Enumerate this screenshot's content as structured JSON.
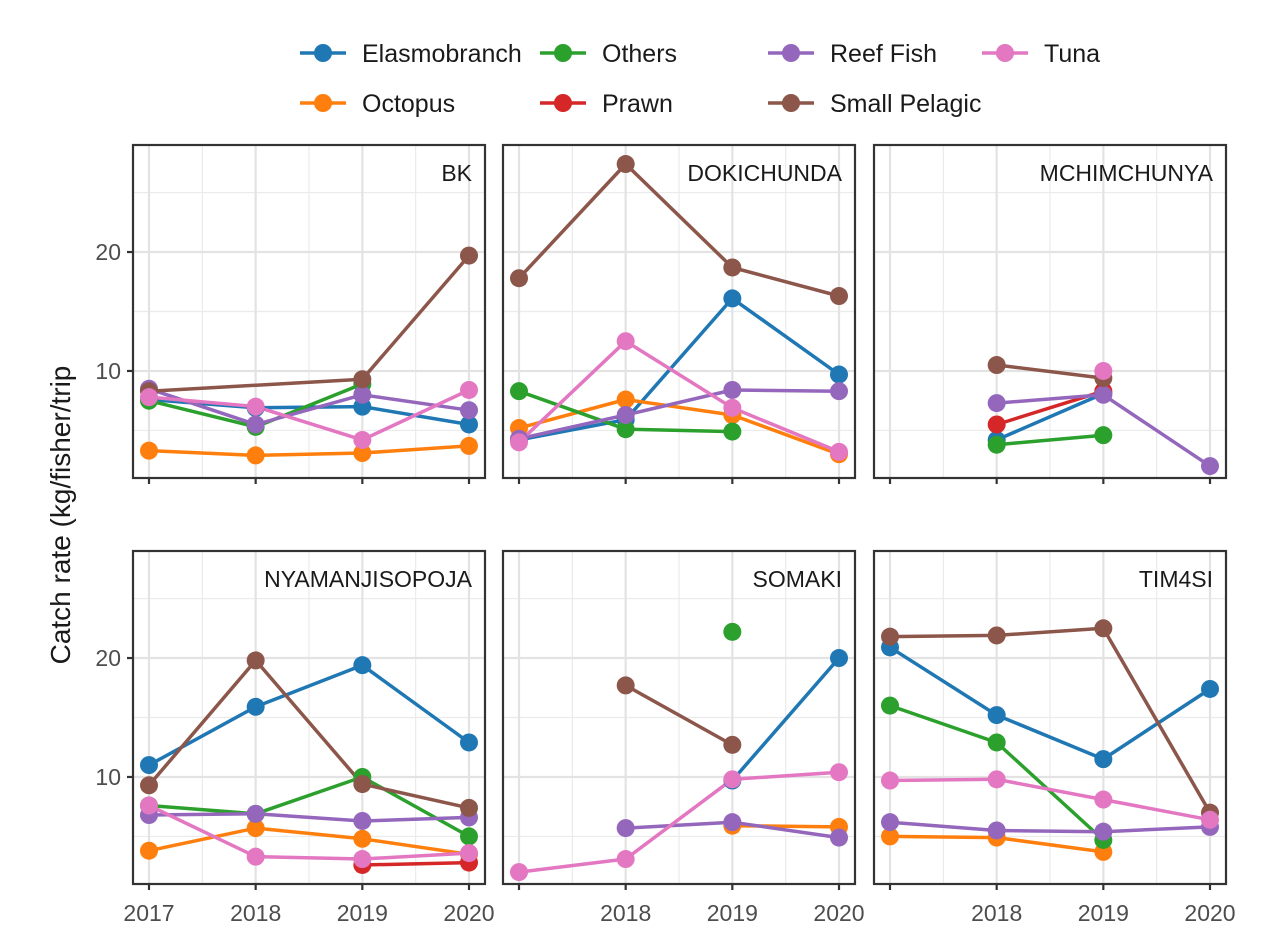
{
  "chart_data": {
    "type": "line",
    "ylabel": "Catch rate (kg/fisher/trip",
    "xlabel": "",
    "x_ticks": [
      2017,
      2018,
      2019,
      2020
    ],
    "y_ticks": [
      10,
      20
    ],
    "ylim": [
      1,
      29
    ],
    "xlim": [
      2016.85,
      2020.15
    ],
    "grid": true,
    "legend_position": "top",
    "series_names": [
      "Elasmobranch",
      "Octopus",
      "Others",
      "Prawn",
      "Reef Fish",
      "Small Pelagic",
      "Tuna"
    ],
    "legend_order": [
      "Elasmobranch",
      "Others",
      "Reef Fish",
      "Tuna",
      "Octopus",
      "Prawn",
      "Small Pelagic"
    ],
    "colors": {
      "Elasmobranch": "#1f77b4",
      "Octopus": "#ff7f0e",
      "Others": "#2ca02c",
      "Prawn": "#d62728",
      "Reef Fish": "#9467bd",
      "Small Pelagic": "#8c564b",
      "Tuna": "#e377c2"
    },
    "panels": [
      {
        "name": "BK",
        "x_tick_labels": [],
        "series": [
          {
            "name": "Elasmobranch",
            "x": [
              2017,
              2018,
              2019,
              2020
            ],
            "y": [
              7.6,
              6.9,
              7.0,
              5.5
            ]
          },
          {
            "name": "Octopus",
            "x": [
              2017,
              2018,
              2019,
              2020
            ],
            "y": [
              3.3,
              2.9,
              3.1,
              3.7
            ]
          },
          {
            "name": "Others",
            "x": [
              2017,
              2018,
              2019
            ],
            "y": [
              7.5,
              5.3,
              8.9
            ]
          },
          {
            "name": "Reef Fish",
            "x": [
              2017,
              2018,
              2019,
              2020
            ],
            "y": [
              8.5,
              5.5,
              8.0,
              6.7
            ]
          },
          {
            "name": "Small Pelagic",
            "x": [
              2017,
              2019,
              2020
            ],
            "y": [
              8.3,
              9.3,
              19.7
            ]
          },
          {
            "name": "Tuna",
            "x": [
              2017,
              2018,
              2019,
              2020
            ],
            "y": [
              7.8,
              7.0,
              4.2,
              8.4
            ]
          }
        ]
      },
      {
        "name": "DOKICHUNDA",
        "x_tick_labels": [],
        "series": [
          {
            "name": "Elasmobranch",
            "x": [
              2017,
              2018,
              2019,
              2020
            ],
            "y": [
              4.2,
              5.9,
              16.1,
              9.7
            ]
          },
          {
            "name": "Octopus",
            "x": [
              2017,
              2018,
              2019,
              2020
            ],
            "y": [
              5.2,
              7.6,
              6.3,
              3.0
            ]
          },
          {
            "name": "Others",
            "x": [
              2017,
              2018,
              2019
            ],
            "y": [
              8.3,
              5.1,
              4.9
            ]
          },
          {
            "name": "Reef Fish",
            "x": [
              2017,
              2018,
              2019,
              2020
            ],
            "y": [
              4.3,
              6.3,
              8.4,
              8.3
            ]
          },
          {
            "name": "Small Pelagic",
            "x": [
              2017,
              2018,
              2019,
              2020
            ],
            "y": [
              17.8,
              27.4,
              18.7,
              16.3
            ]
          },
          {
            "name": "Tuna",
            "x": [
              2017,
              2018,
              2019,
              2020
            ],
            "y": [
              4.0,
              12.5,
              6.9,
              3.2
            ]
          }
        ]
      },
      {
        "name": "MCHIMCHUNYA",
        "x_tick_labels": [],
        "series": [
          {
            "name": "Elasmobranch",
            "x": [
              2018,
              2019
            ],
            "y": [
              4.2,
              8.1
            ]
          },
          {
            "name": "Others",
            "x": [
              2018,
              2019
            ],
            "y": [
              3.8,
              4.6
            ]
          },
          {
            "name": "Prawn",
            "x": [
              2018,
              2019
            ],
            "y": [
              5.5,
              8.3
            ]
          },
          {
            "name": "Reef Fish",
            "x": [
              2018,
              2019,
              2020
            ],
            "y": [
              7.3,
              8.0,
              2.0
            ]
          },
          {
            "name": "Small Pelagic",
            "x": [
              2018,
              2019
            ],
            "y": [
              10.5,
              9.4
            ]
          },
          {
            "name": "Tuna",
            "x": [
              2019
            ],
            "y": [
              10.0
            ]
          }
        ]
      },
      {
        "name": "NYAMANJISOPOJA",
        "x_tick_labels": [
          "2017",
          "2018",
          "2019",
          "2020"
        ],
        "series": [
          {
            "name": "Elasmobranch",
            "x": [
              2017,
              2018,
              2019,
              2020
            ],
            "y": [
              11.0,
              15.9,
              19.4,
              12.9
            ]
          },
          {
            "name": "Octopus",
            "x": [
              2017,
              2018,
              2019,
              2020
            ],
            "y": [
              3.8,
              5.7,
              4.8,
              3.5
            ]
          },
          {
            "name": "Others",
            "x": [
              2017,
              2018,
              2019,
              2020
            ],
            "y": [
              7.6,
              6.9,
              10.0,
              5.0
            ]
          },
          {
            "name": "Prawn",
            "x": [
              2019,
              2020
            ],
            "y": [
              2.6,
              2.8
            ]
          },
          {
            "name": "Reef Fish",
            "x": [
              2017,
              2018,
              2019,
              2020
            ],
            "y": [
              6.8,
              6.9,
              6.3,
              6.6
            ]
          },
          {
            "name": "Small Pelagic",
            "x": [
              2017,
              2018,
              2019,
              2020
            ],
            "y": [
              9.3,
              19.8,
              9.4,
              7.4
            ]
          },
          {
            "name": "Tuna",
            "x": [
              2017,
              2018,
              2019,
              2020
            ],
            "y": [
              7.6,
              3.3,
              3.1,
              3.6
            ]
          }
        ]
      },
      {
        "name": "SOMAKI",
        "x_tick_labels": [
          "",
          "2018",
          "2019",
          "2020"
        ],
        "series": [
          {
            "name": "Elasmobranch",
            "x": [
              2019,
              2020
            ],
            "y": [
              9.7,
              20.0
            ]
          },
          {
            "name": "Octopus",
            "x": [
              2019,
              2020
            ],
            "y": [
              5.9,
              5.8
            ]
          },
          {
            "name": "Others",
            "x": [
              2019
            ],
            "y": [
              22.2
            ]
          },
          {
            "name": "Reef Fish",
            "x": [
              2018,
              2019,
              2020
            ],
            "y": [
              5.7,
              6.2,
              4.9
            ]
          },
          {
            "name": "Small Pelagic",
            "x": [
              2018,
              2019
            ],
            "y": [
              17.7,
              12.7
            ]
          },
          {
            "name": "Tuna",
            "x": [
              2017,
              2018,
              2019,
              2020
            ],
            "y": [
              2.0,
              3.1,
              9.8,
              10.4
            ]
          }
        ]
      },
      {
        "name": "TIM4SI",
        "x_tick_labels": [
          "",
          "2018",
          "2019",
          "2020"
        ],
        "series": [
          {
            "name": "Elasmobranch",
            "x": [
              2017,
              2018,
              2019,
              2020
            ],
            "y": [
              20.9,
              15.2,
              11.5,
              17.4
            ]
          },
          {
            "name": "Octopus",
            "x": [
              2017,
              2018,
              2019
            ],
            "y": [
              5.0,
              4.9,
              3.7
            ]
          },
          {
            "name": "Others",
            "x": [
              2017,
              2018,
              2019
            ],
            "y": [
              16.0,
              12.9,
              4.7
            ]
          },
          {
            "name": "Reef Fish",
            "x": [
              2017,
              2018,
              2019,
              2020
            ],
            "y": [
              6.2,
              5.5,
              5.4,
              5.8
            ]
          },
          {
            "name": "Small Pelagic",
            "x": [
              2017,
              2018,
              2019,
              2020
            ],
            "y": [
              21.8,
              21.9,
              22.5,
              7.0
            ]
          },
          {
            "name": "Tuna",
            "x": [
              2017,
              2018,
              2019,
              2020
            ],
            "y": [
              9.7,
              9.8,
              8.1,
              6.4
            ]
          }
        ]
      }
    ]
  }
}
